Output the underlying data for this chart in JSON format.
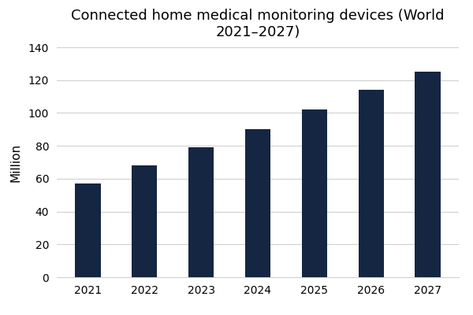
{
  "title": "Connected home medical monitoring devices (World\n2021–2027)",
  "xlabel": "",
  "ylabel": "Million",
  "categories": [
    "2021",
    "2022",
    "2023",
    "2024",
    "2025",
    "2026",
    "2027"
  ],
  "values": [
    57,
    68,
    79,
    90,
    102,
    114,
    125
  ],
  "bar_color": "#152642",
  "background_color": "#ffffff",
  "ylim": [
    0,
    140
  ],
  "yticks": [
    0,
    20,
    40,
    60,
    80,
    100,
    120,
    140
  ],
  "title_fontsize": 13,
  "ylabel_fontsize": 11,
  "tick_fontsize": 10,
  "grid_color": "#d0d0d0",
  "bar_width": 0.45
}
